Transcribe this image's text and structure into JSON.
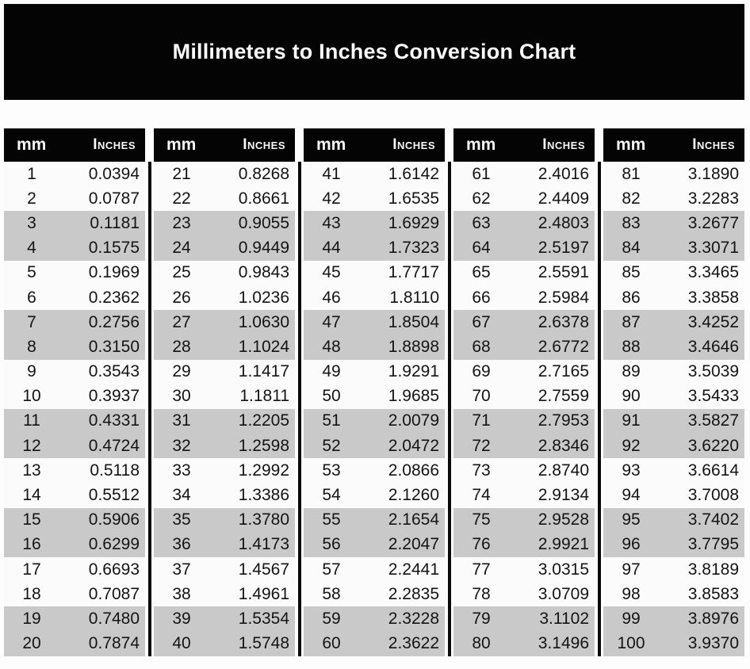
{
  "title": "Millimeters to Inches Conversion Chart",
  "chart_data": {
    "type": "table",
    "title": "Millimeters to Inches Conversion Chart",
    "column_headers": [
      "mm",
      "Inches"
    ],
    "layout": "5 side-by-side two-column tables, paired rows alternately shaded gray",
    "colors": {
      "header_bg": "#040404",
      "shaded_row": "#c9c9c9",
      "row_bg": "#fbfbfb",
      "text": "#141414",
      "header_text": "#f8f8f8"
    },
    "tables": [
      {
        "mm_range": "1-20",
        "rows": [
          [
            "1",
            "0.0394"
          ],
          [
            "2",
            "0.0787"
          ],
          [
            "3",
            "0.1181"
          ],
          [
            "4",
            "0.1575"
          ],
          [
            "5",
            "0.1969"
          ],
          [
            "6",
            "0.2362"
          ],
          [
            "7",
            "0.2756"
          ],
          [
            "8",
            "0.3150"
          ],
          [
            "9",
            "0.3543"
          ],
          [
            "10",
            "0.3937"
          ],
          [
            "11",
            "0.4331"
          ],
          [
            "12",
            "0.4724"
          ],
          [
            "13",
            "0.5118"
          ],
          [
            "14",
            "0.5512"
          ],
          [
            "15",
            "0.5906"
          ],
          [
            "16",
            "0.6299"
          ],
          [
            "17",
            "0.6693"
          ],
          [
            "18",
            "0.7087"
          ],
          [
            "19",
            "0.7480"
          ],
          [
            "20",
            "0.7874"
          ]
        ]
      },
      {
        "mm_range": "21-40",
        "rows": [
          [
            "21",
            "0.8268"
          ],
          [
            "22",
            "0.8661"
          ],
          [
            "23",
            "0.9055"
          ],
          [
            "24",
            "0.9449"
          ],
          [
            "25",
            "0.9843"
          ],
          [
            "26",
            "1.0236"
          ],
          [
            "27",
            "1.0630"
          ],
          [
            "28",
            "1.1024"
          ],
          [
            "29",
            "1.1417"
          ],
          [
            "30",
            "1.1811"
          ],
          [
            "31",
            "1.2205"
          ],
          [
            "32",
            "1.2598"
          ],
          [
            "33",
            "1.2992"
          ],
          [
            "34",
            "1.3386"
          ],
          [
            "35",
            "1.3780"
          ],
          [
            "36",
            "1.4173"
          ],
          [
            "37",
            "1.4567"
          ],
          [
            "38",
            "1.4961"
          ],
          [
            "39",
            "1.5354"
          ],
          [
            "40",
            "1.5748"
          ]
        ]
      },
      {
        "mm_range": "41-60",
        "rows": [
          [
            "41",
            "1.6142"
          ],
          [
            "42",
            "1.6535"
          ],
          [
            "43",
            "1.6929"
          ],
          [
            "44",
            "1.7323"
          ],
          [
            "45",
            "1.7717"
          ],
          [
            "46",
            "1.8110"
          ],
          [
            "47",
            "1.8504"
          ],
          [
            "48",
            "1.8898"
          ],
          [
            "49",
            "1.9291"
          ],
          [
            "50",
            "1.9685"
          ],
          [
            "51",
            "2.0079"
          ],
          [
            "52",
            "2.0472"
          ],
          [
            "53",
            "2.0866"
          ],
          [
            "54",
            "2.1260"
          ],
          [
            "55",
            "2.1654"
          ],
          [
            "56",
            "2.2047"
          ],
          [
            "57",
            "2.2441"
          ],
          [
            "58",
            "2.2835"
          ],
          [
            "59",
            "2.3228"
          ],
          [
            "60",
            "2.3622"
          ]
        ]
      },
      {
        "mm_range": "61-80",
        "rows": [
          [
            "61",
            "2.4016"
          ],
          [
            "62",
            "2.4409"
          ],
          [
            "63",
            "2.4803"
          ],
          [
            "64",
            "2.5197"
          ],
          [
            "65",
            "2.5591"
          ],
          [
            "66",
            "2.5984"
          ],
          [
            "67",
            "2.6378"
          ],
          [
            "68",
            "2.6772"
          ],
          [
            "69",
            "2.7165"
          ],
          [
            "70",
            "2.7559"
          ],
          [
            "71",
            "2.7953"
          ],
          [
            "72",
            "2.8346"
          ],
          [
            "73",
            "2.8740"
          ],
          [
            "74",
            "2.9134"
          ],
          [
            "75",
            "2.9528"
          ],
          [
            "76",
            "2.9921"
          ],
          [
            "77",
            "3.0315"
          ],
          [
            "78",
            "3.0709"
          ],
          [
            "79",
            "3.1102"
          ],
          [
            "80",
            "3.1496"
          ]
        ]
      },
      {
        "mm_range": "81-100",
        "rows": [
          [
            "81",
            "3.1890"
          ],
          [
            "82",
            "3.2283"
          ],
          [
            "83",
            "3.2677"
          ],
          [
            "84",
            "3.3071"
          ],
          [
            "85",
            "3.3465"
          ],
          [
            "86",
            "3.3858"
          ],
          [
            "87",
            "3.4252"
          ],
          [
            "88",
            "3.4646"
          ],
          [
            "89",
            "3.5039"
          ],
          [
            "90",
            "3.5433"
          ],
          [
            "91",
            "3.5827"
          ],
          [
            "92",
            "3.6220"
          ],
          [
            "93",
            "3.6614"
          ],
          [
            "94",
            "3.7008"
          ],
          [
            "95",
            "3.7402"
          ],
          [
            "96",
            "3.7795"
          ],
          [
            "97",
            "3.8189"
          ],
          [
            "98",
            "3.8583"
          ],
          [
            "99",
            "3.8976"
          ],
          [
            "100",
            "3.9370"
          ]
        ]
      }
    ]
  }
}
